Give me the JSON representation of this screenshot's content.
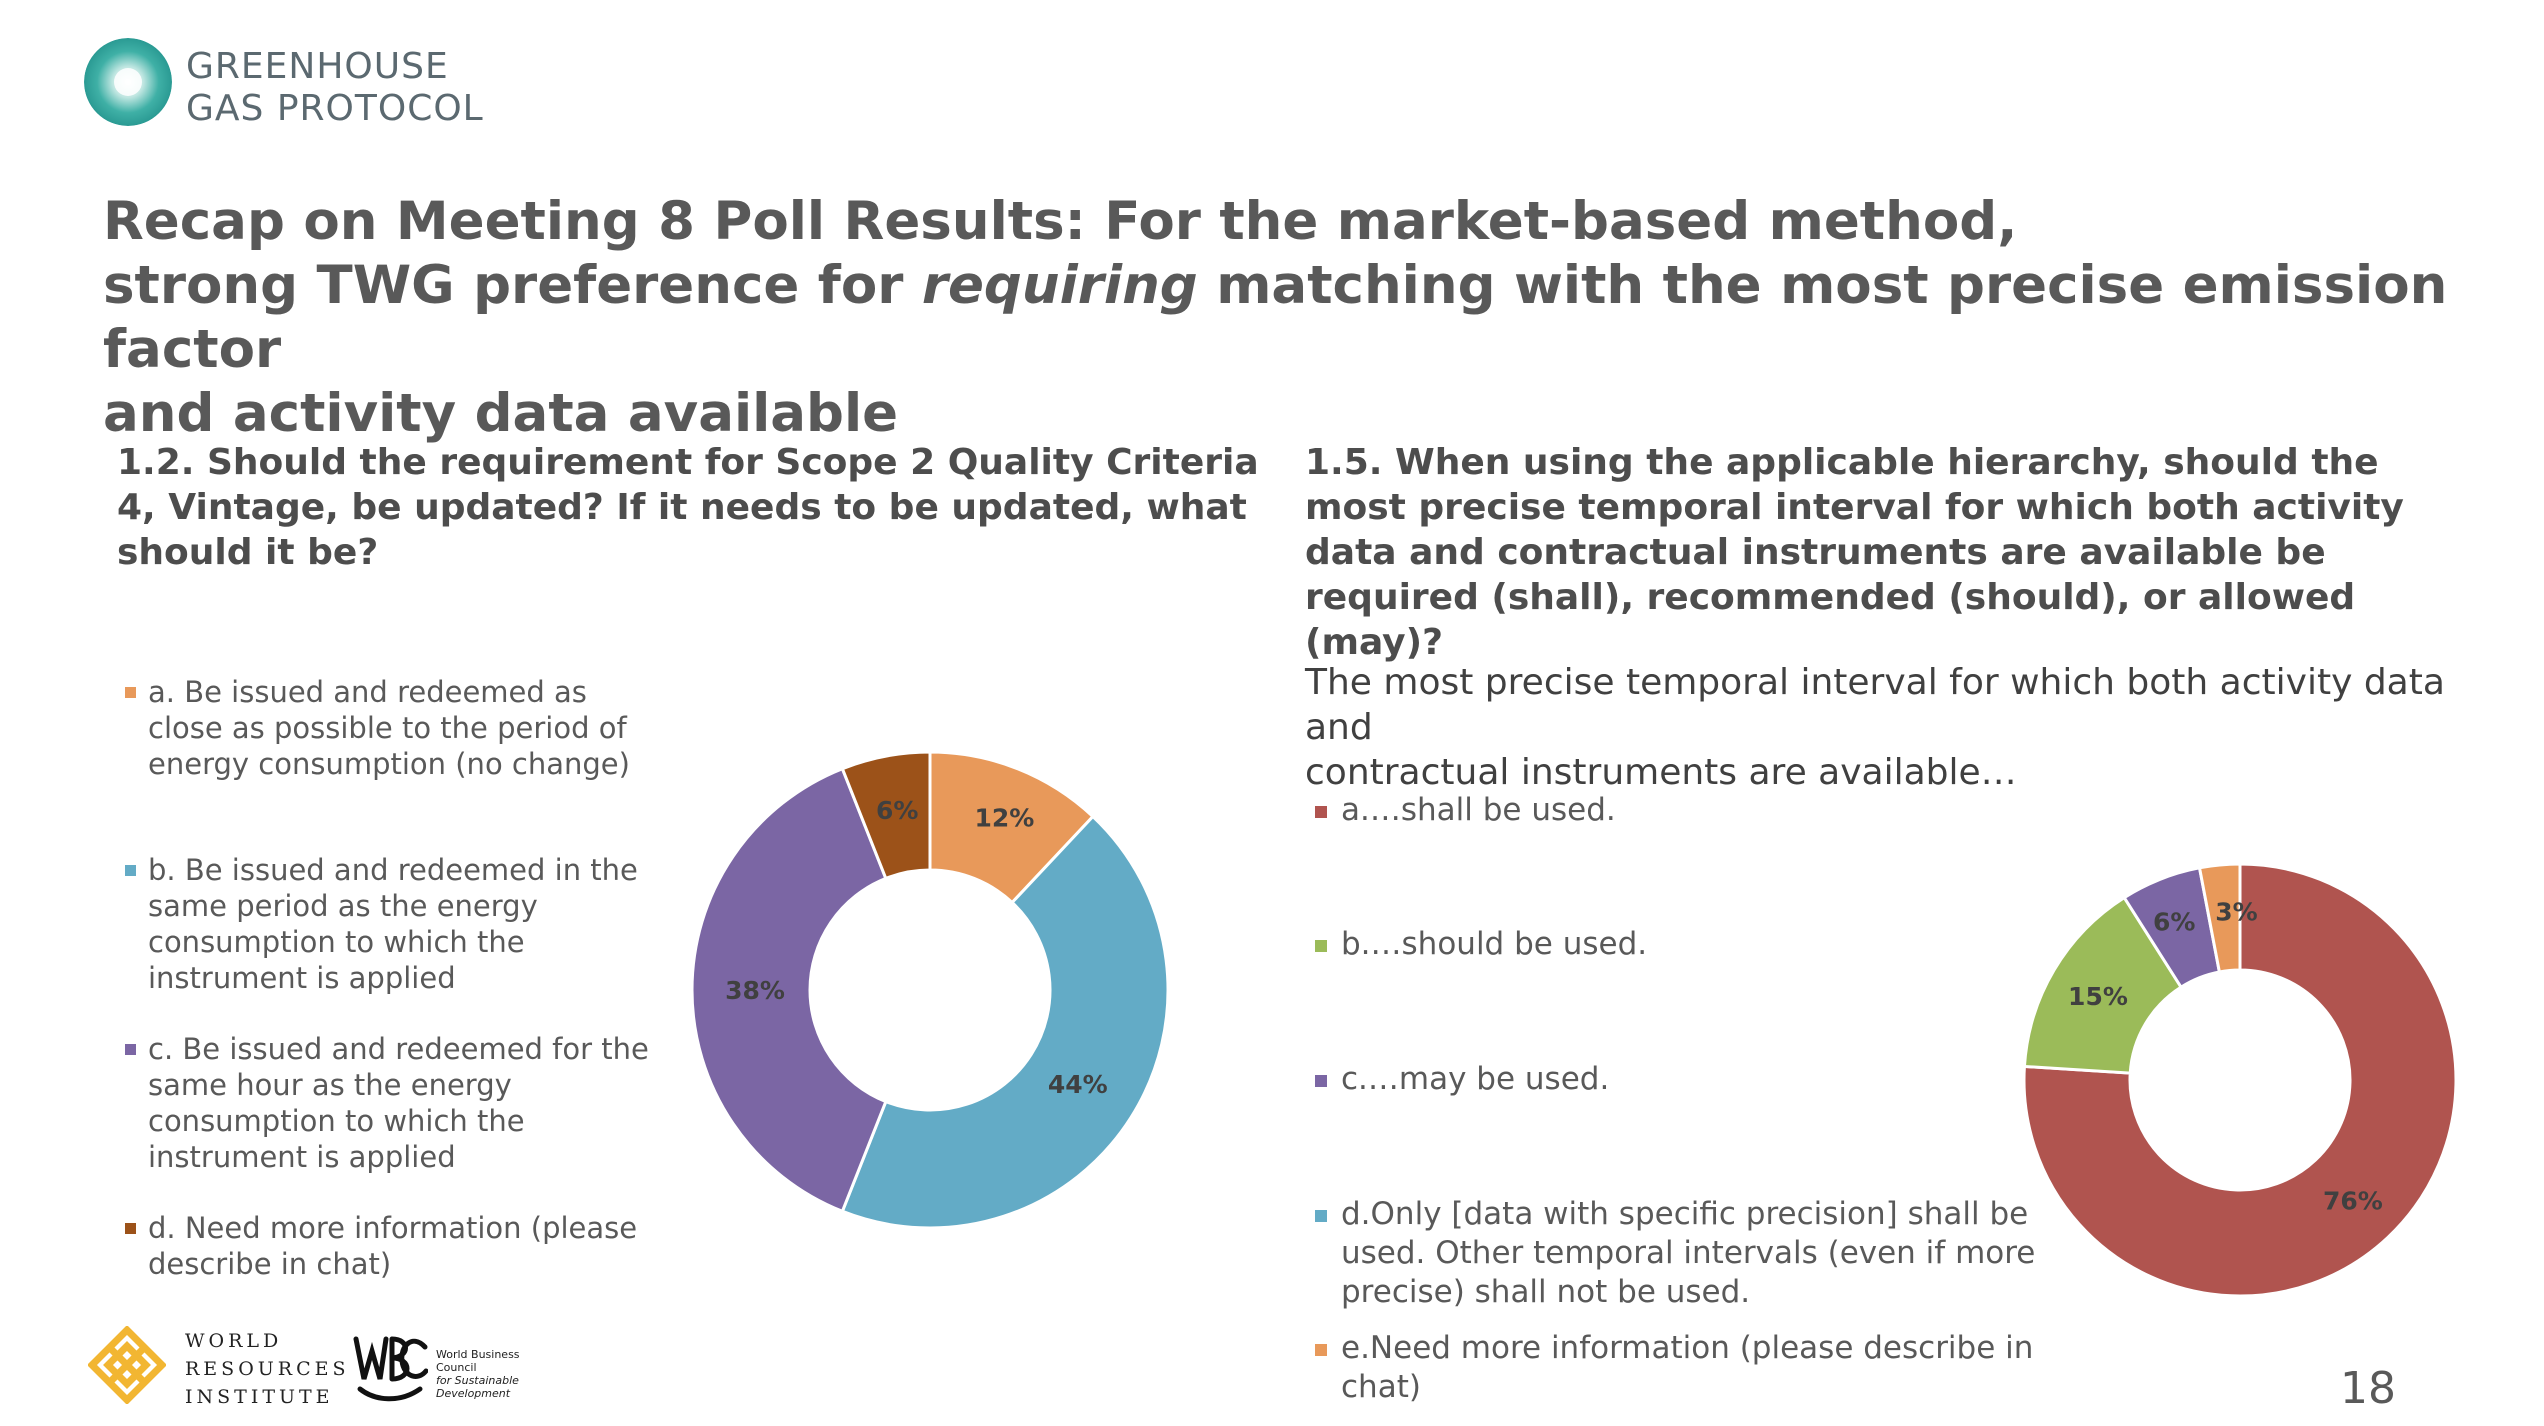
{
  "header": {
    "org_line1": "GREENHOUSE",
    "org_line2": "GAS PROTOCOL",
    "logo_icon": "ghg-swirl-icon"
  },
  "title": {
    "line1": "Recap on Meeting 8 Poll Results: For the market-based method,",
    "line2_pre": "strong TWG preference for ",
    "line2_em": "requiring",
    "line2_post": " matching with the most precise emission factor",
    "line3": "and activity data available"
  },
  "poll1": {
    "question": "1.2. Should the requirement for Scope 2 Quality Criteria 4, Vintage, be updated? If it needs to be updated, what should it be?",
    "legend": [
      {
        "label": "a. Be issued and redeemed as close as possible to the period of energy consumption (no change)",
        "color": "#e8995a"
      },
      {
        "label": "b. Be issued and redeemed in the same period as the energy consumption to which the instrument is applied",
        "color": "#63abc6"
      },
      {
        "label": "c. Be issued and redeemed for the same hour as the energy consumption to which the instrument is applied",
        "color": "#7b66a4"
      },
      {
        "label": "d. Need more information (please describe in chat)",
        "color": "#9c5219"
      }
    ]
  },
  "poll2": {
    "question": "1.5. When using the applicable hierarchy, should the most precise temporal interval for which both activity data and contractual instruments are available be required (shall), recommended (should), or allowed (may)?",
    "subtitle_line1": "The most precise temporal interval for which both activity data and",
    "subtitle_line2": "contractual instruments are available…",
    "legend": [
      {
        "label": "a.…shall be used.",
        "color": "#b0544f"
      },
      {
        "label": "b.…should be used.",
        "color": "#9bbb59"
      },
      {
        "label": "c.…may be used.",
        "color": "#7b66a4"
      },
      {
        "label": "d.Only [data with specific precision] shall be used. Other temporal intervals (even if more precise) shall not be used.",
        "color": "#63abc6"
      },
      {
        "label": "e.Need more information (please describe in chat)",
        "color": "#e8995a"
      }
    ]
  },
  "chart_data": [
    {
      "type": "pie",
      "style": "donut",
      "categories": [
        "a",
        "b",
        "c",
        "d"
      ],
      "values": [
        12,
        44,
        38,
        6
      ],
      "data_labels": [
        "12%",
        "44%",
        "38%",
        "6%"
      ],
      "colors": [
        "#e8995a",
        "#63abc6",
        "#7b66a4",
        "#9c5219"
      ]
    },
    {
      "type": "pie",
      "style": "donut",
      "categories": [
        "a",
        "b",
        "c",
        "d",
        "e"
      ],
      "values": [
        76,
        15,
        6,
        0,
        3
      ],
      "data_labels": [
        "76%",
        "15%",
        "6%",
        "",
        "3%"
      ],
      "colors": [
        "#b0544f",
        "#9bbb59",
        "#7b66a4",
        "#63abc6",
        "#e8995a"
      ]
    }
  ],
  "footer": {
    "wri_line1": "WORLD",
    "wri_line2": "RESOURCES",
    "wri_line3": "INSTITUTE",
    "wri_logo_icon": "wri-knot-icon",
    "wbc_logo_icon": "wbcsd-logo-icon",
    "wbc_line1": "World Business",
    "wbc_line2": "Council",
    "wbc_line3": "for Sustainable",
    "wbc_line4": "Development",
    "page_number": "18"
  }
}
